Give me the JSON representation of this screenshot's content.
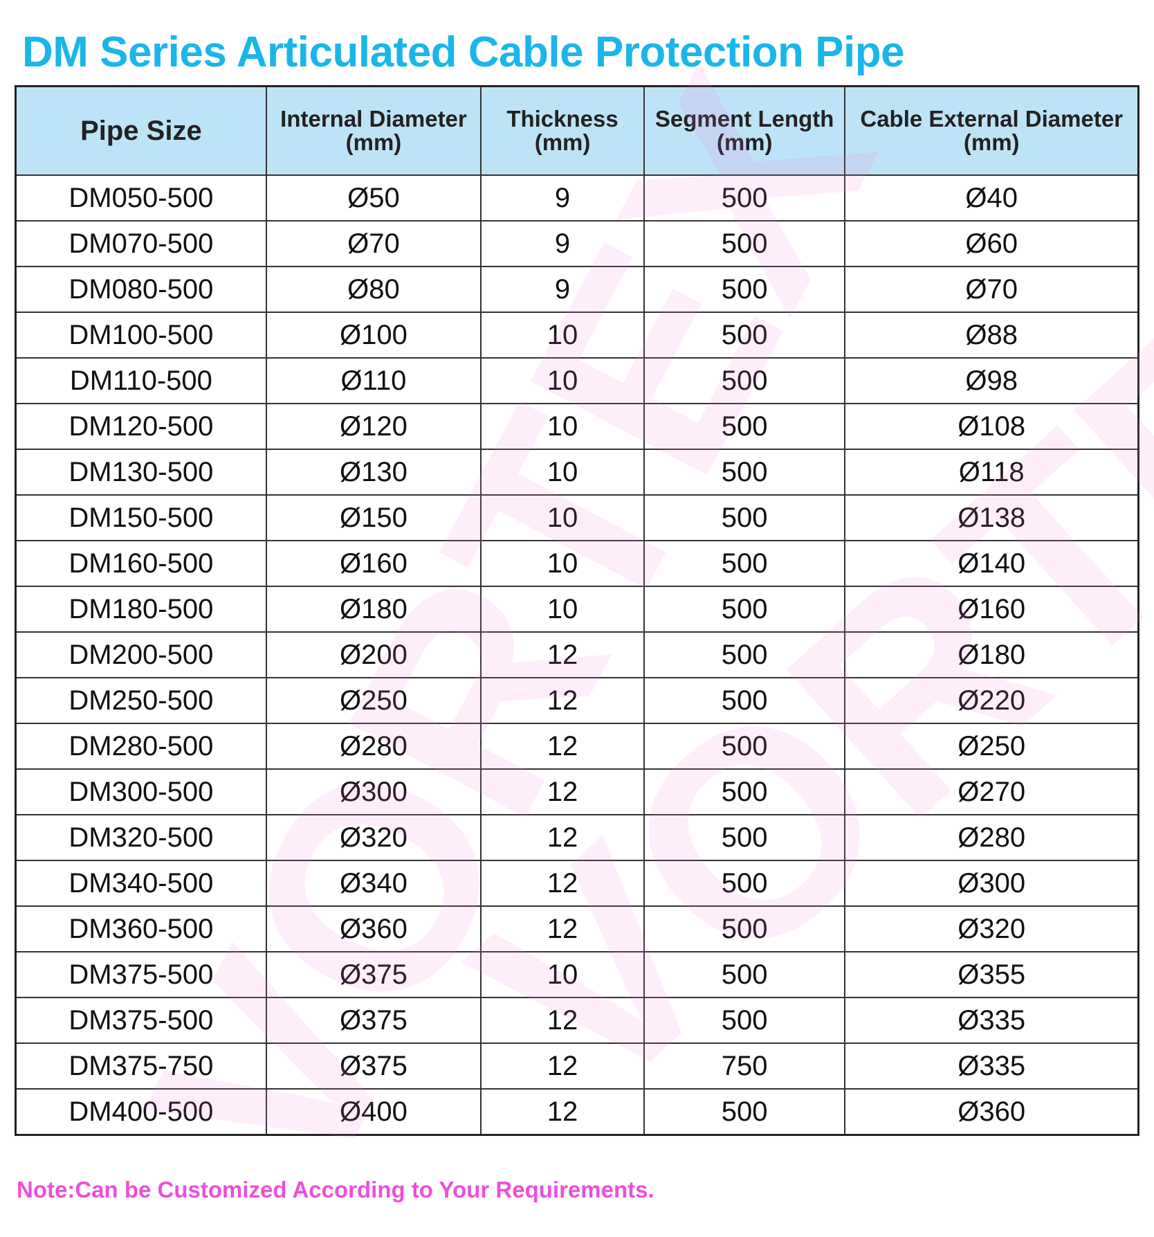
{
  "title": "DM Series Articulated Cable Protection Pipe",
  "colors": {
    "title": "#1bb6e8",
    "header_bg": "#bde3f7",
    "note": "#ec4fd9",
    "watermark": "#f078dc"
  },
  "watermark": "VORTEX",
  "table": {
    "headers": [
      {
        "line1": "Pipe Size",
        "line2": ""
      },
      {
        "line1": "Internal Diameter",
        "line2": "(mm)"
      },
      {
        "line1": "Thickness",
        "line2": "(mm)"
      },
      {
        "line1": "Segment Length",
        "line2": "(mm)"
      },
      {
        "line1": "Cable External Diameter",
        "line2": "(mm)"
      }
    ],
    "rows": [
      [
        "DM050-500",
        "Ø50",
        "9",
        "500",
        "Ø40"
      ],
      [
        "DM070-500",
        "Ø70",
        "9",
        "500",
        "Ø60"
      ],
      [
        "DM080-500",
        "Ø80",
        "9",
        "500",
        "Ø70"
      ],
      [
        "DM100-500",
        "Ø100",
        "10",
        "500",
        "Ø88"
      ],
      [
        "DM110-500",
        "Ø110",
        "10",
        "500",
        "Ø98"
      ],
      [
        "DM120-500",
        "Ø120",
        "10",
        "500",
        "Ø108"
      ],
      [
        "DM130-500",
        "Ø130",
        "10",
        "500",
        "Ø118"
      ],
      [
        "DM150-500",
        "Ø150",
        "10",
        "500",
        "Ø138"
      ],
      [
        "DM160-500",
        "Ø160",
        "10",
        "500",
        "Ø140"
      ],
      [
        "DM180-500",
        "Ø180",
        "10",
        "500",
        "Ø160"
      ],
      [
        "DM200-500",
        "Ø200",
        "12",
        "500",
        "Ø180"
      ],
      [
        "DM250-500",
        "Ø250",
        "12",
        "500",
        "Ø220"
      ],
      [
        "DM280-500",
        "Ø280",
        "12",
        "500",
        "Ø250"
      ],
      [
        "DM300-500",
        "Ø300",
        "12",
        "500",
        "Ø270"
      ],
      [
        "DM320-500",
        "Ø320",
        "12",
        "500",
        "Ø280"
      ],
      [
        "DM340-500",
        "Ø340",
        "12",
        "500",
        "Ø300"
      ],
      [
        "DM360-500",
        "Ø360",
        "12",
        "500",
        "Ø320"
      ],
      [
        "DM375-500",
        "Ø375",
        "10",
        "500",
        "Ø355"
      ],
      [
        "DM375-500",
        "Ø375",
        "12",
        "500",
        "Ø335"
      ],
      [
        "DM375-750",
        "Ø375",
        "12",
        "750",
        "Ø335"
      ],
      [
        "DM400-500",
        "Ø400",
        "12",
        "500",
        "Ø360"
      ]
    ]
  },
  "note": "Note:Can be Customized According to Your Requirements."
}
